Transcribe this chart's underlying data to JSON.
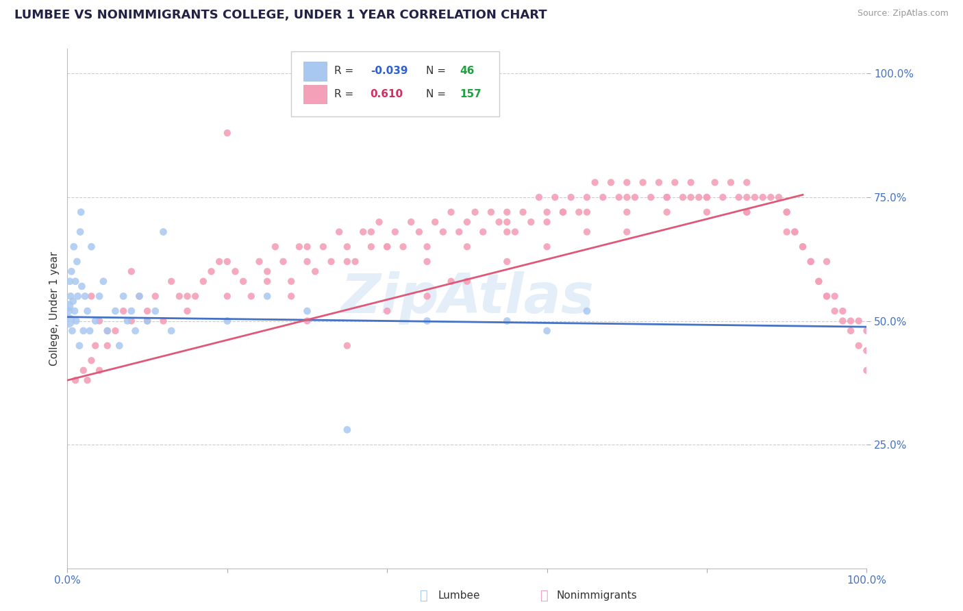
{
  "title": "LUMBEE VS NONIMMIGRANTS COLLEGE, UNDER 1 YEAR CORRELATION CHART",
  "source_text": "Source: ZipAtlas.com",
  "ylabel": "College, Under 1 year",
  "watermark": "ZipAtlas",
  "lumbee_color": "#a8c8f0",
  "lumbee_line_color": "#4472c4",
  "nonimm_color": "#f4a0b8",
  "nonimm_line_color": "#e05878",
  "legend_R_blue": "#3060d0",
  "legend_R_pink": "#d03060",
  "legend_N_green": "#20a040",
  "grid_color": "#cccccc",
  "bg_color": "#ffffff",
  "tick_color": "#4472c4",
  "lumbee_R": -0.039,
  "lumbee_N": 46,
  "nonimm_R": 0.61,
  "nonimm_N": 157,
  "lumbee_trend": [
    0.0,
    1.0,
    0.508,
    0.488
  ],
  "nonimm_trend": [
    0.0,
    0.92,
    0.38,
    0.755
  ],
  "xlim": [
    0.0,
    1.0
  ],
  "ylim": [
    0.0,
    1.05
  ],
  "lumbee_x": [
    0.001,
    0.001,
    0.002,
    0.003,
    0.004,
    0.005,
    0.006,
    0.007,
    0.008,
    0.009,
    0.01,
    0.011,
    0.012,
    0.013,
    0.015,
    0.016,
    0.017,
    0.018,
    0.02,
    0.022,
    0.025,
    0.028,
    0.03,
    0.035,
    0.04,
    0.045,
    0.05,
    0.06,
    0.065,
    0.07,
    0.075,
    0.08,
    0.085,
    0.09,
    0.1,
    0.11,
    0.12,
    0.13,
    0.2,
    0.25,
    0.3,
    0.35,
    0.45,
    0.55,
    0.6,
    0.65
  ],
  "lumbee_y": [
    0.5,
    0.53,
    0.52,
    0.58,
    0.55,
    0.6,
    0.48,
    0.54,
    0.65,
    0.52,
    0.58,
    0.5,
    0.62,
    0.55,
    0.45,
    0.68,
    0.72,
    0.57,
    0.48,
    0.55,
    0.52,
    0.48,
    0.65,
    0.5,
    0.55,
    0.58,
    0.48,
    0.52,
    0.45,
    0.55,
    0.5,
    0.52,
    0.48,
    0.55,
    0.5,
    0.52,
    0.68,
    0.48,
    0.5,
    0.55,
    0.52,
    0.28,
    0.5,
    0.5,
    0.48,
    0.52
  ],
  "lumbee_sizes": [
    200,
    120,
    60,
    60,
    60,
    60,
    60,
    60,
    60,
    60,
    60,
    60,
    60,
    60,
    60,
    60,
    60,
    60,
    60,
    60,
    60,
    60,
    60,
    60,
    60,
    60,
    60,
    60,
    60,
    60,
    60,
    60,
    60,
    60,
    60,
    60,
    60,
    60,
    60,
    60,
    60,
    60,
    60,
    60,
    60,
    60
  ],
  "nonimm_x": [
    0.01,
    0.02,
    0.025,
    0.03,
    0.035,
    0.04,
    0.04,
    0.05,
    0.06,
    0.07,
    0.08,
    0.09,
    0.1,
    0.11,
    0.12,
    0.13,
    0.14,
    0.15,
    0.16,
    0.17,
    0.18,
    0.19,
    0.2,
    0.21,
    0.22,
    0.23,
    0.24,
    0.25,
    0.26,
    0.27,
    0.28,
    0.29,
    0.3,
    0.31,
    0.32,
    0.33,
    0.34,
    0.35,
    0.36,
    0.37,
    0.38,
    0.39,
    0.4,
    0.41,
    0.42,
    0.43,
    0.44,
    0.45,
    0.46,
    0.47,
    0.48,
    0.49,
    0.5,
    0.51,
    0.52,
    0.53,
    0.54,
    0.55,
    0.56,
    0.57,
    0.58,
    0.59,
    0.6,
    0.61,
    0.62,
    0.63,
    0.64,
    0.65,
    0.66,
    0.67,
    0.68,
    0.69,
    0.7,
    0.71,
    0.72,
    0.73,
    0.74,
    0.75,
    0.76,
    0.77,
    0.78,
    0.79,
    0.8,
    0.81,
    0.82,
    0.83,
    0.84,
    0.85,
    0.86,
    0.87,
    0.88,
    0.89,
    0.9,
    0.91,
    0.92,
    0.93,
    0.94,
    0.95,
    0.96,
    0.97,
    0.98,
    0.99,
    1.0,
    0.03,
    0.05,
    0.08,
    0.1,
    0.15,
    0.2,
    0.25,
    0.3,
    0.3,
    0.35,
    0.35,
    0.4,
    0.4,
    0.45,
    0.45,
    0.5,
    0.5,
    0.55,
    0.55,
    0.6,
    0.6,
    0.65,
    0.65,
    0.7,
    0.7,
    0.75,
    0.75,
    0.8,
    0.8,
    0.85,
    0.85,
    0.9,
    0.9,
    0.92,
    0.93,
    0.94,
    0.95,
    0.96,
    0.97,
    0.98,
    0.99,
    1.0,
    1.0,
    0.2,
    0.28,
    0.38,
    0.48,
    0.55,
    0.62,
    0.7,
    0.78,
    0.85,
    0.91,
    0.95
  ],
  "nonimm_y": [
    0.38,
    0.4,
    0.38,
    0.42,
    0.45,
    0.4,
    0.5,
    0.45,
    0.48,
    0.52,
    0.5,
    0.55,
    0.52,
    0.55,
    0.5,
    0.58,
    0.55,
    0.52,
    0.55,
    0.58,
    0.6,
    0.62,
    0.55,
    0.6,
    0.58,
    0.55,
    0.62,
    0.6,
    0.65,
    0.62,
    0.58,
    0.65,
    0.62,
    0.6,
    0.65,
    0.62,
    0.68,
    0.65,
    0.62,
    0.68,
    0.65,
    0.7,
    0.65,
    0.68,
    0.65,
    0.7,
    0.68,
    0.65,
    0.7,
    0.68,
    0.72,
    0.68,
    0.7,
    0.72,
    0.68,
    0.72,
    0.7,
    0.72,
    0.68,
    0.72,
    0.7,
    0.75,
    0.72,
    0.75,
    0.72,
    0.75,
    0.72,
    0.75,
    0.78,
    0.75,
    0.78,
    0.75,
    0.78,
    0.75,
    0.78,
    0.75,
    0.78,
    0.75,
    0.78,
    0.75,
    0.78,
    0.75,
    0.75,
    0.78,
    0.75,
    0.78,
    0.75,
    0.78,
    0.75,
    0.75,
    0.75,
    0.75,
    0.72,
    0.68,
    0.65,
    0.62,
    0.58,
    0.55,
    0.52,
    0.5,
    0.48,
    0.45,
    0.4,
    0.55,
    0.48,
    0.6,
    0.5,
    0.55,
    0.62,
    0.58,
    0.65,
    0.5,
    0.62,
    0.45,
    0.65,
    0.52,
    0.62,
    0.55,
    0.65,
    0.58,
    0.68,
    0.62,
    0.7,
    0.65,
    0.72,
    0.68,
    0.72,
    0.68,
    0.72,
    0.75,
    0.72,
    0.75,
    0.72,
    0.75,
    0.72,
    0.68,
    0.65,
    0.62,
    0.58,
    0.55,
    0.55,
    0.52,
    0.5,
    0.5,
    0.48,
    0.44,
    0.88,
    0.55,
    0.68,
    0.58,
    0.7,
    0.72,
    0.75,
    0.75,
    0.72,
    0.68,
    0.62
  ]
}
